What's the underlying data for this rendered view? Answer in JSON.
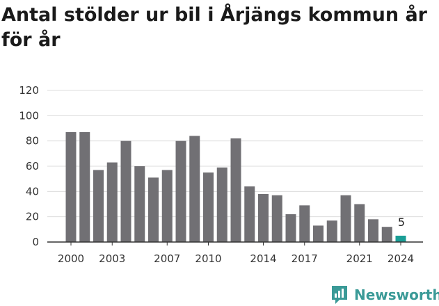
{
  "chart_data": {
    "type": "bar",
    "title": "Antal stölder ur bil i Årjängs kommun år för år",
    "xlabel": "",
    "ylabel": "",
    "ylim": [
      0,
      120
    ],
    "yticks": [
      0,
      20,
      40,
      60,
      80,
      100,
      120
    ],
    "xticks": [
      "2000",
      "2003",
      "2007",
      "2010",
      "2014",
      "2017",
      "2021",
      "2024"
    ],
    "grid": true,
    "categories": [
      "2000",
      "2001",
      "2002",
      "2003",
      "2004",
      "2005",
      "2006",
      "2007",
      "2008",
      "2009",
      "2010",
      "2011",
      "2012",
      "2013",
      "2014",
      "2015",
      "2016",
      "2017",
      "2018",
      "2019",
      "2020",
      "2021",
      "2022",
      "2023",
      "2024"
    ],
    "values": [
      87,
      87,
      57,
      63,
      80,
      60,
      51,
      57,
      80,
      84,
      55,
      59,
      82,
      44,
      38,
      37,
      22,
      29,
      13,
      17,
      37,
      30,
      18,
      12,
      5
    ],
    "bar_color": "#717074",
    "highlight_color": "#1a9e96",
    "highlight_index": 24,
    "data_labels": [
      {
        "index": 24,
        "text": "5"
      }
    ]
  },
  "brand": {
    "name": "Newsworthy",
    "icon": "newsworthy-logo-icon",
    "color": "#3a9a97"
  }
}
